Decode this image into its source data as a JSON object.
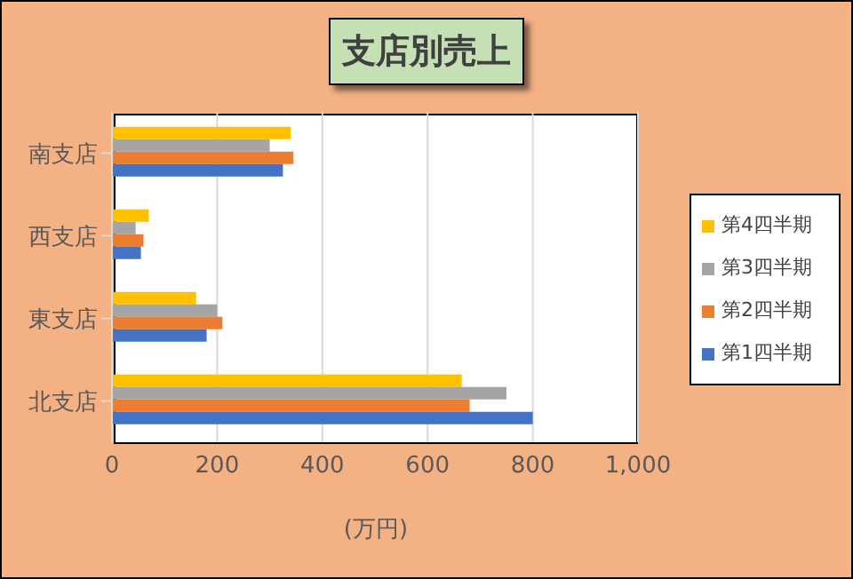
{
  "chart_data": {
    "type": "bar",
    "orientation": "horizontal",
    "title": "支店別売上",
    "xlabel": "(万円)",
    "categories": [
      "南支店",
      "西支店",
      "東支店",
      "北支店"
    ],
    "series": [
      {
        "name": "第4四半期",
        "color": "#ffc000",
        "values": [
          340,
          70,
          160,
          665
        ]
      },
      {
        "name": "第3四半期",
        "color": "#a5a5a5",
        "values": [
          300,
          45,
          200,
          750
        ]
      },
      {
        "name": "第2四半期",
        "color": "#ed7d31",
        "values": [
          345,
          60,
          210,
          680
        ]
      },
      {
        "name": "第1四半期",
        "color": "#4472c4",
        "values": [
          325,
          55,
          180,
          800
        ]
      }
    ],
    "xlim": [
      0,
      1000
    ],
    "xticks": [
      0,
      200,
      400,
      600,
      800,
      {
        "value": 1000,
        "label": "1,000"
      }
    ],
    "grid": "x",
    "legend": "right"
  }
}
